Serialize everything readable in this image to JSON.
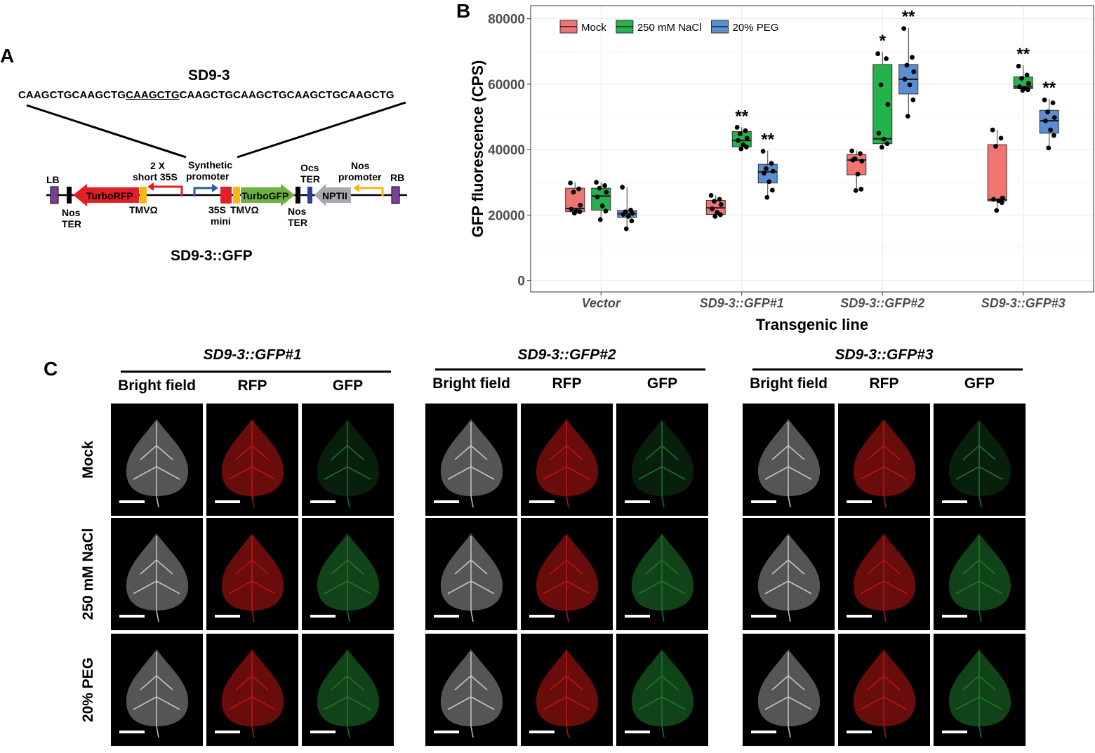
{
  "panel_a": {
    "letter": "A",
    "sequence_title": "SD9-3",
    "sequence_pre": "CAAGCTGCAAGCTG",
    "sequence_underlined": "CAAGCTG",
    "sequence_post": "CAAGCTGCAAGCTGCAAGCTGCAAGCTG",
    "construct_name": "SD9-3::GFP",
    "labels": {
      "lb": "LB",
      "rb": "RB",
      "nos_ter_left": [
        "Nos",
        "TER"
      ],
      "turbo_rfp": "TurboRFP",
      "tmv_left": "TMVΩ",
      "short35s": [
        "2 X",
        "short 35S"
      ],
      "synthetic_promoter": [
        "Synthetic",
        "promoter"
      ],
      "mini35s": [
        "35S",
        "mini"
      ],
      "tmv_right": "TMVΩ",
      "turbo_gfp": "TurboGFP",
      "nos_ter_right": [
        "Nos",
        "TER"
      ],
      "ocs_ter": [
        "Ocs",
        "TER"
      ],
      "nptii": "NPTII",
      "nos_promoter": [
        "Nos",
        "promoter"
      ]
    },
    "colors": {
      "lb_rb": "#7b3f98",
      "rfp": "#e21e26",
      "tmv": "#fbb616",
      "promoter_arrow_red": "#e21e26",
      "promoter_arrow_blue": "#2e5aa8",
      "gfp": "#6db33f",
      "ocs": "#2e3f9a",
      "nptii": "#a7a9ac",
      "nos_promoter_arrow": "#fbb616"
    }
  },
  "panel_b": {
    "letter": "B",
    "chart_data": {
      "type": "box",
      "xlabel": "Transgenic line",
      "ylabel": "GFP fluorescence (CPS)",
      "ylim": [
        -3500,
        84000
      ],
      "yticks": [
        0,
        20000,
        40000,
        60000,
        80000
      ],
      "ytick_labels": [
        "0",
        "20000",
        "40000",
        "60000",
        "80000"
      ],
      "grid": true,
      "legend_position": "top-left",
      "categories": [
        "Vector",
        "SD9-3::GFP#1",
        "SD9-3::GFP#2",
        "SD9-3::GFP#3"
      ],
      "series": [
        {
          "name": "Mock",
          "color": "#f07470",
          "boxes": [
            {
              "min": 20400,
              "q1": 21000,
              "median": 22000,
              "q3": 28200,
              "max": 30000,
              "points": [
                29800,
                28000,
                27000,
                23000,
                21800,
                21200,
                21000,
                20600
              ],
              "sig": ""
            },
            {
              "min": 19600,
              "q1": 20200,
              "median": 22200,
              "q3": 24500,
              "max": 26000,
              "points": [
                26000,
                24800,
                24200,
                23200,
                21900,
                20800,
                20100,
                19600
              ],
              "sig": ""
            },
            {
              "min": 27600,
              "q1": 32300,
              "median": 36800,
              "q3": 38500,
              "max": 39700,
              "points": [
                39600,
                38800,
                37200,
                36500,
                36800,
                32500,
                27900,
                27500
              ],
              "sig": ""
            },
            {
              "min": 21500,
              "q1": 24300,
              "median": 24700,
              "q3": 41500,
              "max": 46000,
              "points": [
                46000,
                43500,
                41000,
                25200,
                24800,
                24400,
                23800,
                21400
              ],
              "sig": ""
            }
          ]
        },
        {
          "name": "250 mM NaCl",
          "color": "#23b34a",
          "boxes": [
            {
              "min": 19000,
              "q1": 21500,
              "median": 25800,
              "q3": 28200,
              "max": 30000,
              "points": [
                30000,
                29000,
                28200,
                27000,
                25500,
                22800,
                21200,
                18600
              ],
              "sig": ""
            },
            {
              "min": 40200,
              "q1": 40800,
              "median": 42800,
              "q3": 45500,
              "max": 46800,
              "points": [
                46800,
                45800,
                44800,
                43500,
                42800,
                41500,
                40800,
                40200
              ],
              "sig": "**"
            },
            {
              "min": 40800,
              "q1": 41800,
              "median": 43300,
              "q3": 66000,
              "max": 69800,
              "points": [
                69300,
                67800,
                59800,
                53800,
                45000,
                43200,
                41800,
                40700
              ],
              "sig": "*"
            },
            {
              "min": 58000,
              "q1": 58600,
              "median": 59200,
              "q3": 62200,
              "max": 65800,
              "points": [
                65500,
                62800,
                61800,
                60200,
                59200,
                58700,
                58300,
                58100
              ],
              "sig": "**"
            }
          ]
        },
        {
          "name": "20% PEG",
          "color": "#5b8fd3",
          "boxes": [
            {
              "min": 16000,
              "q1": 19300,
              "median": 20400,
              "q3": 21400,
              "max": 28500,
              "points": [
                28500,
                21500,
                21000,
                20500,
                20200,
                19600,
                18200,
                15800
              ],
              "sig": ""
            },
            {
              "min": 25600,
              "q1": 29800,
              "median": 33200,
              "q3": 35500,
              "max": 39700,
              "points": [
                39500,
                35800,
                34200,
                33400,
                32800,
                30200,
                27600,
                25400
              ],
              "sig": "**"
            },
            {
              "min": 50000,
              "q1": 57000,
              "median": 61500,
              "q3": 66000,
              "max": 77200,
              "points": [
                77000,
                68200,
                65800,
                63800,
                61500,
                59800,
                55200,
                50200
              ],
              "sig": "**"
            },
            {
              "min": 40500,
              "q1": 45000,
              "median": 48800,
              "q3": 52000,
              "max": 55500,
              "points": [
                55200,
                54300,
                51500,
                49800,
                48800,
                46000,
                44300,
                40500
              ],
              "sig": "**"
            }
          ]
        }
      ]
    }
  },
  "panel_c": {
    "letter": "C",
    "groups": [
      {
        "title": "SD9-3::GFP#1"
      },
      {
        "title": "SD9-3::GFP#2"
      },
      {
        "title": "SD9-3::GFP#3"
      }
    ],
    "column_labels": [
      "Bright field",
      "RFP",
      "GFP"
    ],
    "row_labels": [
      "Mock",
      "250 mM NaCl",
      "20% PEG"
    ],
    "channel_colors": {
      "Bright field": "#9a9a9a",
      "RFP": "#c01616",
      "GFP": "#1f7a2e"
    }
  }
}
